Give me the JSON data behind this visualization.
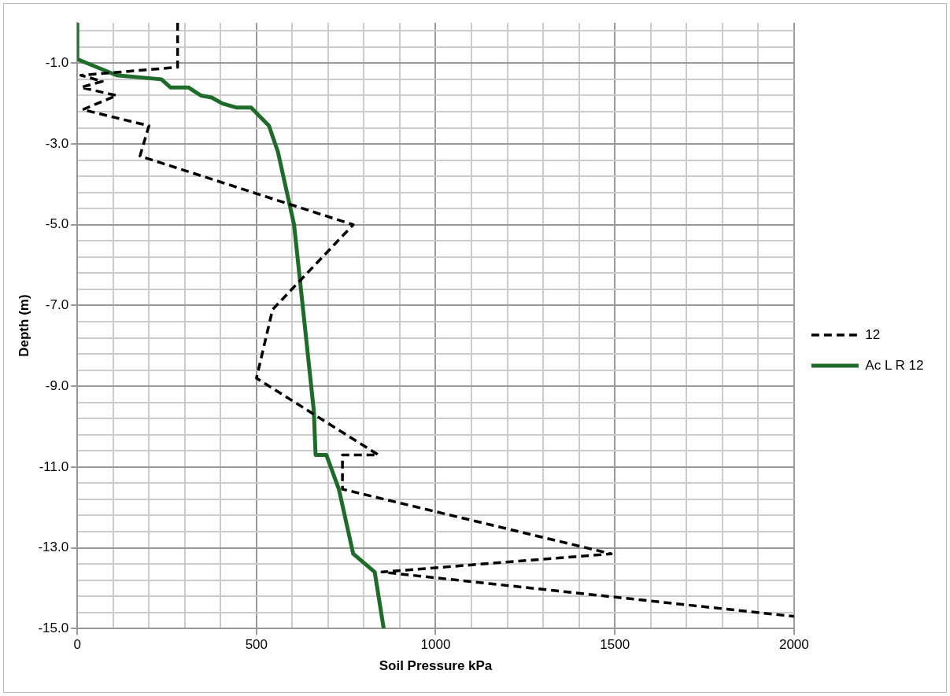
{
  "chart_data": {
    "type": "line",
    "xlabel": "Soil Pressure kPa",
    "ylabel": "Depth (m)",
    "xlim": [
      0,
      2000
    ],
    "xticks": [
      0,
      {
        "value": 100,
        "label": null
      },
      {
        "value": 200,
        "label": null
      },
      {
        "value": 300,
        "label": null
      },
      {
        "value": 400,
        "label": null
      },
      500,
      {
        "value": 600,
        "label": null
      },
      {
        "value": 700,
        "label": null
      },
      {
        "value": 800,
        "label": null
      },
      {
        "value": 900,
        "label": null
      },
      1000,
      {
        "value": 1100,
        "label": null
      },
      {
        "value": 1200,
        "label": null
      },
      {
        "value": 1300,
        "label": null
      },
      {
        "value": 1400,
        "label": null
      },
      1500,
      {
        "value": 1600,
        "label": null
      },
      {
        "value": 1700,
        "label": null
      },
      {
        "value": 1800,
        "label": null
      },
      {
        "value": 1900,
        "label": null
      },
      2000
    ],
    "ylim": [
      -15,
      0
    ],
    "yticks": [
      {
        "value": -15,
        "label": "-15.0"
      },
      {
        "value": -14.6,
        "label": null
      },
      {
        "value": -14.2,
        "label": null
      },
      {
        "value": -13.8,
        "label": null
      },
      {
        "value": -13.4,
        "label": null
      },
      {
        "value": -13,
        "label": "-13.0"
      },
      {
        "value": -12.6,
        "label": null
      },
      {
        "value": -12.2,
        "label": null
      },
      {
        "value": -11.8,
        "label": null
      },
      {
        "value": -11.4,
        "label": null
      },
      {
        "value": -11,
        "label": "-11.0"
      },
      {
        "value": -10.6,
        "label": null
      },
      {
        "value": -10.2,
        "label": null
      },
      {
        "value": -9.8,
        "label": null
      },
      {
        "value": -9.4,
        "label": null
      },
      {
        "value": -9,
        "label": "-9.0"
      },
      {
        "value": -8.6,
        "label": null
      },
      {
        "value": -8.2,
        "label": null
      },
      {
        "value": -7.8,
        "label": null
      },
      {
        "value": -7.4,
        "label": null
      },
      {
        "value": -7,
        "label": "-7.0"
      },
      {
        "value": -6.6,
        "label": null
      },
      {
        "value": -6.2,
        "label": null
      },
      {
        "value": -5.8,
        "label": null
      },
      {
        "value": -5.4,
        "label": null
      },
      {
        "value": -5,
        "label": "-5.0"
      },
      {
        "value": -4.6,
        "label": null
      },
      {
        "value": -4.2,
        "label": null
      },
      {
        "value": -3.8,
        "label": null
      },
      {
        "value": -3.4,
        "label": null
      },
      {
        "value": -3,
        "label": "-3.0"
      },
      {
        "value": -2.6,
        "label": null
      },
      {
        "value": -2.2,
        "label": null
      },
      {
        "value": -1.8,
        "label": null
      },
      {
        "value": -1.4,
        "label": null
      },
      {
        "value": -1,
        "label": "-1.0"
      },
      {
        "value": -0.6,
        "label": null
      },
      {
        "value": -0.2,
        "label": null
      }
    ],
    "grid": true,
    "legend": "right",
    "marker": "none",
    "series": [
      {
        "name": "12",
        "color": "#000000",
        "line_style": "dashed",
        "x": [
          280,
          280,
          10,
          70,
          10,
          110,
          15,
          200,
          175,
          770,
          545,
          500,
          840,
          740,
          740,
          1490,
          850,
          2000
        ],
        "values": [
          0,
          -1.1,
          -1.3,
          -1.45,
          -1.6,
          -1.8,
          -2.15,
          -2.55,
          -3.3,
          -5.0,
          -7.1,
          -8.8,
          -10.7,
          -10.7,
          -11.55,
          -13.15,
          -13.6,
          -14.7
        ]
      },
      {
        "name": "Ac L R 12",
        "color": "#1e6b2a",
        "line_style": "solid",
        "x": [
          0,
          0,
          110,
          235,
          260,
          310,
          345,
          375,
          405,
          445,
          485,
          535,
          560,
          605,
          660,
          665,
          695,
          730,
          770,
          830,
          855
        ],
        "values": [
          0,
          -0.9,
          -1.3,
          -1.4,
          -1.6,
          -1.6,
          -1.8,
          -1.85,
          -2.0,
          -2.1,
          -2.1,
          -2.55,
          -3.2,
          -5.0,
          -9.6,
          -10.7,
          -10.7,
          -11.55,
          -13.15,
          -13.6,
          -15
        ]
      }
    ]
  }
}
